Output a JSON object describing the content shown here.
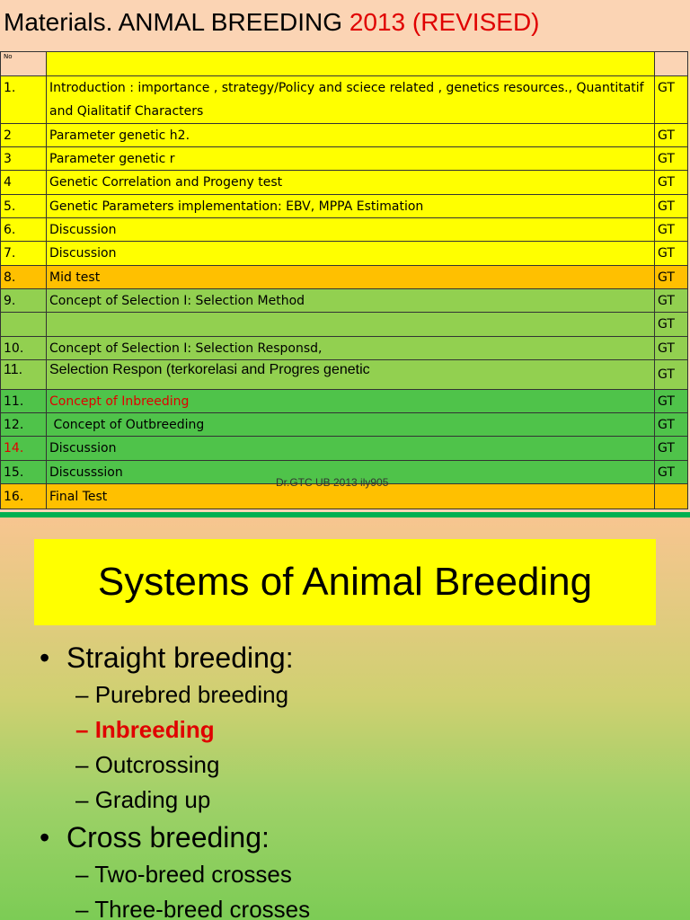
{
  "slide1": {
    "title_part1": "Materials. ANMAL BREEDING ",
    "title_part2": "2013 (REVISED)",
    "header": {
      "no": "No",
      "topic": "",
      "lecturer": ""
    },
    "rows": [
      {
        "no": "1.",
        "topic": "Introduction : importance , strategy/Policy  and sciece related , genetics resources., Quantitatif and Qialitatif Characters",
        "lecturer": "GT",
        "bg": "#ffff00"
      },
      {
        "no": "2",
        "topic": "Parameter genetic h2.",
        "lecturer": "GT",
        "bg": "#ffff00"
      },
      {
        "no": "3",
        "topic": "Parameter genetic r",
        "lecturer": "GT",
        "bg": "#ffff00"
      },
      {
        "no": "4",
        "topic": "Genetic Correlation and Progeny test",
        "lecturer": "GT",
        "bg": "#ffff00"
      },
      {
        "no": "5.",
        "topic": "Genetic Parameters  implementation: EBV, MPPA Estimation",
        "lecturer": "GT",
        "bg": "#ffff00"
      },
      {
        "no": "6.",
        "topic": "Discussion",
        "lecturer": "GT",
        "bg": "#ffff00"
      },
      {
        "no": "7.",
        "topic": "Discussion",
        "lecturer": "GT",
        "bg": "#ffff00"
      },
      {
        "no": "8.",
        "topic": "Mid test",
        "lecturer": "GT",
        "bg": "#ffc000"
      },
      {
        "no": "9.",
        "topic": "Concept of Selection I: Selection Method",
        "lecturer": "GT",
        "bg": "#92d050"
      },
      {
        "no": "",
        "topic": "",
        "lecturer": "GT",
        "bg": "#92d050"
      },
      {
        "no": "10.",
        "topic": "Concept of Selection I: Selection Responsd,",
        "lecturer": "GT",
        "bg": "#92d050"
      },
      {
        "no": "11.",
        "topic": "Selection Respon (terkorelasi  and Progres genetic",
        "lecturer": "GT",
        "bg": "#92d050"
      },
      {
        "no": "11.",
        "topic": "Concept of Inbreeding",
        "lecturer": "GT",
        "bg": "#4fc34a"
      },
      {
        "no": "12.",
        "topic": " Concept of Outbreeding",
        "lecturer": "GT",
        "bg": "#4fc34a"
      },
      {
        "no": "14.",
        "topic": "Discussion",
        "lecturer": "GT",
        "bg": "#4fc34a"
      },
      {
        "no": "15.",
        "topic": "Discusssion",
        "lecturer": "GT",
        "bg": "#4fc34a"
      },
      {
        "no": "16.",
        "topic": "Final Test",
        "lecturer": "",
        "bg": "#ffc000"
      }
    ],
    "footer": "Dr.GTC UB 2013 ily905"
  },
  "slide2": {
    "title": "Systems of Animal Breeding",
    "bullet_char": "•",
    "dash": "–",
    "b1": "Straight   breeding:",
    "b1_items": [
      "Purebred breeding",
      "Inbreeding",
      "Outcrossing",
      "Grading up"
    ],
    "b2": "Cross   breeding:",
    "b2_items": [
      "Two-breed crosses",
      "Three-breed crosses"
    ]
  },
  "colors": {
    "title_red": "#e00000",
    "slide_bg": "#fbd4b4",
    "highlight_yellow": "#ffff00",
    "green_bar": "#00b050"
  }
}
